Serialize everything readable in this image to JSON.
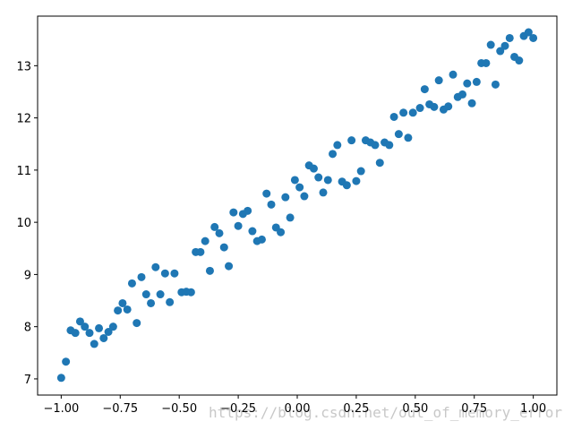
{
  "chart_data": {
    "type": "scatter",
    "color": "#1f77b4",
    "x": [
      -1.0,
      -0.98,
      -0.96,
      -0.94,
      -0.92,
      -0.9,
      -0.88,
      -0.86,
      -0.84,
      -0.82,
      -0.8,
      -0.78,
      -0.76,
      -0.74,
      -0.72,
      -0.7,
      -0.68,
      -0.66,
      -0.64,
      -0.62,
      -0.6,
      -0.58,
      -0.56,
      -0.54,
      -0.52,
      -0.49,
      -0.47,
      -0.45,
      -0.43,
      -0.41,
      -0.39,
      -0.37,
      -0.35,
      -0.33,
      -0.31,
      -0.29,
      -0.27,
      -0.25,
      -0.23,
      -0.21,
      -0.19,
      -0.17,
      -0.15,
      -0.13,
      -0.11,
      -0.09,
      -0.07,
      -0.05,
      -0.03,
      -0.01,
      0.01,
      0.03,
      0.05,
      0.07,
      0.09,
      0.11,
      0.13,
      0.15,
      0.17,
      0.19,
      0.21,
      0.23,
      0.25,
      0.27,
      0.29,
      0.31,
      0.33,
      0.35,
      0.37,
      0.39,
      0.41,
      0.43,
      0.45,
      0.47,
      0.49,
      0.52,
      0.54,
      0.56,
      0.58,
      0.6,
      0.62,
      0.64,
      0.66,
      0.68,
      0.7,
      0.72,
      0.74,
      0.76,
      0.78,
      0.8,
      0.82,
      0.84,
      0.86,
      0.88,
      0.9,
      0.92,
      0.94,
      0.96,
      0.98,
      1.0
    ],
    "values": [
      7.02,
      7.33,
      7.93,
      7.88,
      8.1,
      8.0,
      7.88,
      7.67,
      7.97,
      7.78,
      7.9,
      8.0,
      8.31,
      8.45,
      8.33,
      8.83,
      8.07,
      8.95,
      8.62,
      8.45,
      9.14,
      8.62,
      9.02,
      8.47,
      9.02,
      8.66,
      8.67,
      8.66,
      9.43,
      9.43,
      9.64,
      9.07,
      9.91,
      9.79,
      9.52,
      9.16,
      10.19,
      9.93,
      10.16,
      10.22,
      9.83,
      9.64,
      9.67,
      10.55,
      10.34,
      9.9,
      9.81,
      10.48,
      10.09,
      10.81,
      10.67,
      10.5,
      11.09,
      11.03,
      10.86,
      10.57,
      10.81,
      11.31,
      11.48,
      10.78,
      10.71,
      11.57,
      10.79,
      10.98,
      11.57,
      11.53,
      11.48,
      11.14,
      11.53,
      11.48,
      12.02,
      11.69,
      12.1,
      11.62,
      12.1,
      12.19,
      12.55,
      12.26,
      12.21,
      12.72,
      12.16,
      12.22,
      12.83,
      12.4,
      12.45,
      12.66,
      12.28,
      12.69,
      13.05,
      13.05,
      13.4,
      12.64,
      13.28,
      13.38,
      13.53,
      13.17,
      13.1,
      13.57,
      13.64,
      13.53
    ],
    "xlim": [
      -1.1,
      1.1
    ],
    "ylim": [
      6.69,
      13.95
    ],
    "xticks": [
      {
        "value": -1,
        "label": "−1.00"
      },
      {
        "value": -0.75,
        "label": "−0.75"
      },
      {
        "value": -0.5,
        "label": "−0.50"
      },
      {
        "value": -0.25,
        "label": "−0.25"
      },
      {
        "value": 0,
        "label": "0.00"
      },
      {
        "value": 0.25,
        "label": "0.25"
      },
      {
        "value": 0.5,
        "label": "0.50"
      },
      {
        "value": 0.75,
        "label": "0.75"
      },
      {
        "value": 1,
        "label": "1.00"
      }
    ],
    "yticks": [
      7,
      8,
      9,
      10,
      11,
      12,
      13
    ],
    "grid": false
  },
  "watermark": "https://blog.csdn.net/out_of_memory_error"
}
